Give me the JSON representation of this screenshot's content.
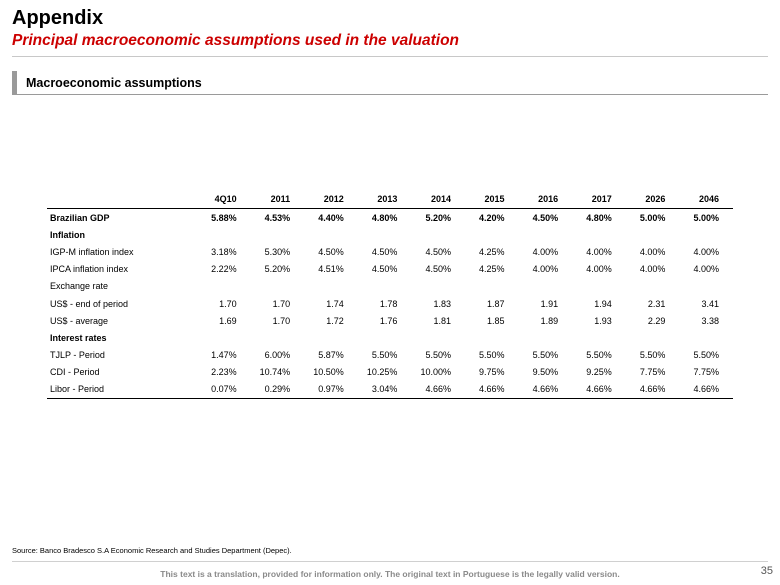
{
  "header": {
    "title": "Appendix",
    "subtitle": "Principal macroeconomic assumptions used in the valuation"
  },
  "section": {
    "label": "Macroeconomic assumptions"
  },
  "table": {
    "columns": [
      "",
      "4Q10",
      "2011",
      "2012",
      "2013",
      "2014",
      "2015",
      "2016",
      "2017",
      "2026",
      "2046"
    ],
    "rows": [
      {
        "kind": "bold",
        "cells": [
          "Brazilian GDP",
          "5.88%",
          "4.53%",
          "4.40%",
          "4.80%",
          "5.20%",
          "4.20%",
          "4.50%",
          "4.80%",
          "5.00%",
          "5.00%"
        ]
      },
      {
        "kind": "section",
        "cells": [
          "Inflation",
          "",
          "",
          "",
          "",
          "",
          "",
          "",
          "",
          "",
          ""
        ]
      },
      {
        "kind": "normal",
        "cells": [
          "IGP-M inflation index",
          "3.18%",
          "5.30%",
          "4.50%",
          "4.50%",
          "4.50%",
          "4.25%",
          "4.00%",
          "4.00%",
          "4.00%",
          "4.00%"
        ]
      },
      {
        "kind": "normal",
        "cells": [
          "IPCA inflation index",
          "2.22%",
          "5.20%",
          "4.51%",
          "4.50%",
          "4.50%",
          "4.25%",
          "4.00%",
          "4.00%",
          "4.00%",
          "4.00%"
        ]
      },
      {
        "kind": "normal",
        "cells": [
          "Exchange rate",
          "",
          "",
          "",
          "",
          "",
          "",
          "",
          "",
          "",
          ""
        ]
      },
      {
        "kind": "normal",
        "cells": [
          "US$ - end of period",
          "1.70",
          "1.70",
          "1.74",
          "1.78",
          "1.83",
          "1.87",
          "1.91",
          "1.94",
          "2.31",
          "3.41"
        ]
      },
      {
        "kind": "normal",
        "cells": [
          "US$ - average",
          "1.69",
          "1.70",
          "1.72",
          "1.76",
          "1.81",
          "1.85",
          "1.89",
          "1.93",
          "2.29",
          "3.38"
        ]
      },
      {
        "kind": "section",
        "cells": [
          "Interest rates",
          "",
          "",
          "",
          "",
          "",
          "",
          "",
          "",
          "",
          ""
        ]
      },
      {
        "kind": "normal",
        "cells": [
          "TJLP - Period",
          "1.47%",
          "6.00%",
          "5.87%",
          "5.50%",
          "5.50%",
          "5.50%",
          "5.50%",
          "5.50%",
          "5.50%",
          "5.50%"
        ]
      },
      {
        "kind": "normal",
        "cells": [
          "CDI - Period",
          "2.23%",
          "10.74%",
          "10.50%",
          "10.25%",
          "10.00%",
          "9.75%",
          "9.50%",
          "9.25%",
          "7.75%",
          "7.75%"
        ]
      },
      {
        "kind": "normal",
        "cells": [
          "Libor - Period",
          "0.07%",
          "0.29%",
          "0.97%",
          "3.04%",
          "4.66%",
          "4.66%",
          "4.66%",
          "4.66%",
          "4.66%",
          "4.66%"
        ]
      }
    ]
  },
  "footer": {
    "source": "Source: Banco Bradesco S.A  Economic Research and Studies Department (Depec).",
    "disclaimer": "This text is a translation, provided for information only. The original text in Portuguese is the legally valid version.",
    "page_number": "35"
  },
  "colors": {
    "accent": "#cc0000",
    "section_bar": "#9a9a9a",
    "disclaimer_text": "#8a8a8a"
  }
}
